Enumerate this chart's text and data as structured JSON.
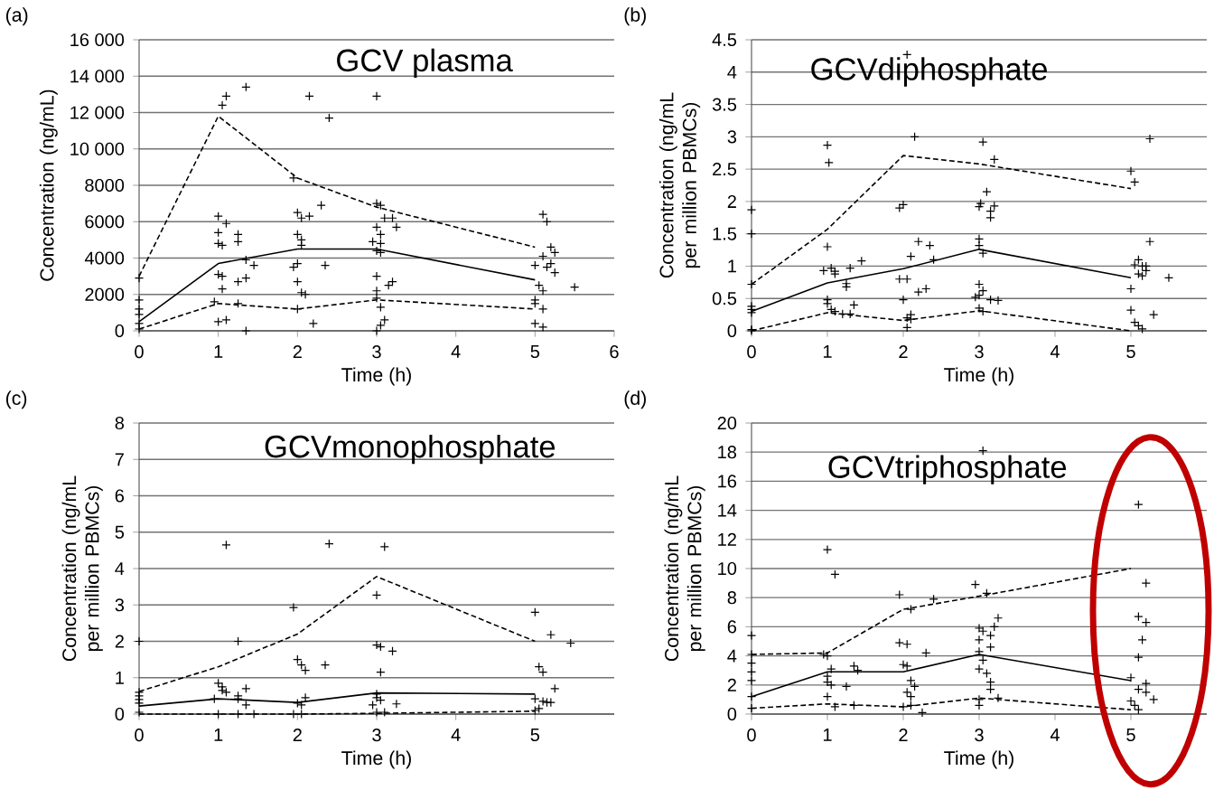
{
  "chart_data": [
    {
      "type": "line",
      "title": "GCV plasma",
      "annotations": [
        "(a)"
      ],
      "xlabel": "Time (h)",
      "ylabel": "Concentration (ng/mL)",
      "xlim": [
        0,
        6
      ],
      "xticks": [
        0,
        1,
        2,
        3,
        4,
        5,
        6
      ],
      "ylim": [
        0,
        16000
      ],
      "yticks": [
        0,
        2000,
        4000,
        6000,
        8000,
        {
          "value": 10000,
          "label": "10 000"
        },
        {
          "value": 12000,
          "label": "12 000"
        },
        {
          "value": 14000,
          "label": "14 000"
        },
        {
          "value": 16000,
          "label": "16 000"
        }
      ],
      "grid": "y",
      "series": [
        {
          "type": "scatter",
          "marker": "cross",
          "color": "#000000",
          "x": [
            0,
            0,
            0,
            0,
            0,
            0,
            1.05,
            1.1,
            1.35,
            1,
            1,
            1.1,
            1,
            1.05,
            1.25,
            1.25,
            1.35,
            1.45,
            1,
            1.05,
            1.25,
            1.35,
            0.95,
            1.25,
            1,
            1.1,
            1.35,
            1.05,
            1.95,
            2.15,
            2.4,
            2,
            2.05,
            2.15,
            2.3,
            2,
            2.05,
            2.05,
            1.95,
            2,
            2.35,
            2,
            2.05,
            2.1,
            2.2,
            2,
            3,
            3,
            3.05,
            3.1,
            3.2,
            3.25,
            3,
            3.05,
            2.95,
            3.05,
            3,
            3.05,
            3,
            3.2,
            3.15,
            3,
            3,
            3.05,
            3.1,
            3.05,
            3,
            5.1,
            5.15,
            5.2,
            5.25,
            5.1,
            5,
            5.2,
            5.15,
            5.25,
            5.05,
            5.1,
            5.5,
            5,
            5,
            5.1,
            5,
            5.1
          ],
          "values": [
            2900,
            1700,
            1200,
            900,
            400,
            100,
            12400,
            12900,
            13400,
            6300,
            5400,
            5900,
            4800,
            4700,
            5300,
            4900,
            3900,
            3600,
            3100,
            3000,
            2700,
            2900,
            1600,
            1500,
            500,
            600,
            0,
            2300,
            8400,
            12900,
            11700,
            6500,
            6200,
            6300,
            6900,
            5300,
            5000,
            4700,
            3500,
            3700,
            3600,
            2700,
            2100,
            2000,
            400,
            1200,
            12900,
            7000,
            6900,
            6200,
            6200,
            5700,
            5700,
            5300,
            4900,
            4800,
            4400,
            4300,
            3000,
            2700,
            2500,
            2200,
            1800,
            1300,
            600,
            300,
            0,
            6400,
            6000,
            4600,
            4300,
            4100,
            3600,
            3700,
            3500,
            3200,
            2500,
            2200,
            2400,
            1700,
            1500,
            1200,
            400,
            200
          ]
        },
        {
          "type": "line",
          "marker": "none",
          "line_style": "dashed",
          "color": "#000000",
          "x": [
            0,
            1,
            2,
            3,
            5
          ],
          "values": [
            3000,
            11800,
            8400,
            6800,
            4600
          ]
        },
        {
          "type": "line",
          "marker": "none",
          "line_style": "solid",
          "color": "#000000",
          "x": [
            0,
            1,
            2,
            3,
            5
          ],
          "values": [
            500,
            3700,
            4500,
            4500,
            2800
          ]
        },
        {
          "type": "line",
          "marker": "none",
          "line_style": "dashed",
          "color": "#000000",
          "x": [
            0,
            1,
            2,
            3,
            5
          ],
          "values": [
            100,
            1500,
            1200,
            1700,
            1200
          ]
        }
      ]
    },
    {
      "type": "line",
      "title": "GCVdiphosphate",
      "annotations": [
        "(b)"
      ],
      "xlabel": "Time (h)",
      "ylabel": "Concentration (ng/mL per million PBMCs)",
      "xlim": [
        0,
        6
      ],
      "xticks": [
        0,
        1,
        2,
        3,
        4,
        5
      ],
      "ylim": [
        0,
        4.5
      ],
      "yticks": [
        0,
        0.5,
        1,
        1.5,
        2,
        2.5,
        3,
        3.5,
        4,
        4.5
      ],
      "grid": "y",
      "series": [
        {
          "type": "scatter",
          "marker": "cross",
          "color": "#000000",
          "x": [
            0,
            0,
            0,
            0,
            0,
            0,
            0,
            0,
            1,
            1.02,
            1,
            0.95,
            1.05,
            1.1,
            1.1,
            1.3,
            1.45,
            1.25,
            1.25,
            1,
            1,
            1.05,
            1.1,
            1.2,
            1.3,
            1.35,
            2.05,
            2.15,
            1.95,
            2,
            2.1,
            2.2,
            2.35,
            2.4,
            1.95,
            2.05,
            2.2,
            2.3,
            2,
            2.1,
            2.05,
            2.1,
            2.05,
            3.05,
            3.2,
            3,
            3.02,
            3.1,
            3.15,
            3.15,
            3.2,
            3,
            3,
            3.05,
            3,
            3.05,
            2.95,
            3,
            3.15,
            3.25,
            3,
            3.05,
            5.25,
            5,
            5.05,
            5.25,
            5.1,
            5.05,
            5.15,
            5.2,
            5.2,
            5.1,
            5.15,
            5.5,
            5,
            5,
            5.3,
            5.05,
            5.1,
            5.15
          ],
          "values": [
            1.87,
            1.5,
            0.72,
            0.38,
            0.33,
            0.28,
            0.02,
            0,
            2.87,
            2.6,
            1.3,
            0.93,
            0.97,
            0.92,
            0.88,
            0.97,
            1.08,
            0.73,
            0.68,
            0.48,
            0.42,
            0.33,
            0.3,
            0.26,
            0.26,
            0.4,
            4.27,
            3.0,
            1.9,
            1.95,
            1.15,
            1.38,
            1.32,
            1.1,
            0.8,
            0.8,
            0.6,
            0.65,
            0.48,
            0.25,
            0.2,
            0.18,
            0.05,
            2.92,
            2.65,
            1.92,
            1.97,
            2.15,
            1.85,
            1.75,
            1.93,
            1.42,
            1.32,
            1.2,
            0.72,
            0.62,
            0.52,
            0.55,
            0.48,
            0.47,
            0.35,
            0.3,
            2.97,
            2.47,
            2.3,
            1.38,
            1.1,
            1.02,
            1.0,
            1.0,
            0.93,
            0.88,
            0.85,
            0.82,
            0.65,
            0.32,
            0.25,
            0.13,
            0.08,
            0.03
          ]
        },
        {
          "type": "line",
          "marker": "none",
          "line_style": "dashed",
          "color": "#000000",
          "x": [
            0,
            1,
            2,
            3,
            5
          ],
          "values": [
            0.72,
            1.57,
            2.71,
            2.58,
            2.2
          ]
        },
        {
          "type": "line",
          "marker": "none",
          "line_style": "solid",
          "color": "#000000",
          "x": [
            0,
            1,
            2,
            3,
            5
          ],
          "values": [
            0.3,
            0.74,
            0.96,
            1.26,
            0.82
          ]
        },
        {
          "type": "line",
          "marker": "none",
          "line_style": "dashed",
          "color": "#000000",
          "x": [
            0,
            1,
            2,
            3,
            5
          ],
          "values": [
            0,
            0.28,
            0.16,
            0.31,
            0
          ]
        }
      ]
    },
    {
      "type": "line",
      "title": "GCVmonophosphate",
      "annotations": [
        "(c)"
      ],
      "xlabel": "Time (h)",
      "ylabel": "Concentration (ng/mL per million PBMCs)",
      "xlim": [
        0,
        6
      ],
      "xticks": [
        0,
        1,
        2,
        3,
        4,
        5
      ],
      "ylim": [
        0,
        8
      ],
      "yticks": [
        0,
        1,
        2,
        3,
        4,
        5,
        6,
        7,
        8
      ],
      "grid": "y",
      "series": [
        {
          "type": "scatter",
          "marker": "cross",
          "color": "#000000",
          "x": [
            0,
            0,
            0,
            0,
            0,
            0,
            1.1,
            1.25,
            1,
            1.05,
            1.05,
            1.1,
            0.95,
            1.25,
            1.25,
            1.35,
            1.35,
            1,
            1.25,
            1.45,
            2.4,
            1.95,
            2,
            2.05,
            2.1,
            2.35,
            2,
            2.05,
            2.1,
            1.95,
            2.05,
            3.1,
            3,
            3,
            3.05,
            3.2,
            3.05,
            3,
            2.95,
            3,
            3.05,
            3.25,
            3,
            3.1,
            5,
            5.2,
            5.45,
            5.05,
            5.1,
            5.25,
            5,
            5.1,
            5.15,
            5.2,
            5.05,
            5
          ],
          "values": [
            2.0,
            0.6,
            0.5,
            0.4,
            0.3,
            0.05,
            4.65,
            2.0,
            0.85,
            0.75,
            0.65,
            0.6,
            0.42,
            0.5,
            0.42,
            0.7,
            0.25,
            0,
            0,
            0,
            4.68,
            2.93,
            1.5,
            1.35,
            1.2,
            1.35,
            0.3,
            0.25,
            0.45,
            0,
            0,
            4.6,
            3.27,
            1.9,
            1.85,
            1.73,
            1.15,
            0.55,
            0.25,
            0.45,
            0.38,
            0.28,
            0.05,
            0.05,
            2.8,
            2.18,
            1.95,
            1.3,
            1.15,
            0.7,
            0.42,
            0.35,
            0.32,
            0.32,
            0.15,
            0.1
          ]
        },
        {
          "type": "line",
          "marker": "none",
          "line_style": "dashed",
          "color": "#000000",
          "x": [
            0,
            1,
            2,
            3,
            5
          ],
          "values": [
            0.62,
            1.3,
            2.2,
            3.78,
            2.0
          ]
        },
        {
          "type": "line",
          "marker": "none",
          "line_style": "solid",
          "color": "#000000",
          "x": [
            0,
            1,
            2,
            3,
            5
          ],
          "values": [
            0.22,
            0.42,
            0.32,
            0.58,
            0.55
          ]
        },
        {
          "type": "line",
          "marker": "none",
          "line_style": "dashed",
          "color": "#000000",
          "x": [
            0,
            1,
            2,
            3,
            5
          ],
          "values": [
            0,
            0,
            0,
            0.02,
            0.08
          ]
        }
      ]
    },
    {
      "type": "line",
      "title": "GCVtriphosphate",
      "annotations": [
        "(d)"
      ],
      "xlabel": "Time (h)",
      "ylabel": "Concentration (ng/mL per million PBMCs)",
      "xlim": [
        0,
        6
      ],
      "xticks": [
        0,
        1,
        2,
        3,
        4,
        5
      ],
      "ylim": [
        0,
        20
      ],
      "yticks": [
        0,
        2,
        4,
        6,
        8,
        10,
        12,
        14,
        16,
        18,
        20
      ],
      "grid": "y",
      "series": [
        {
          "type": "scatter",
          "marker": "cross",
          "color": "#000000",
          "x": [
            0,
            0,
            0,
            0,
            0,
            0,
            0,
            1,
            1.1,
            0.95,
            1,
            1.05,
            1,
            1,
            1.05,
            1.25,
            1.35,
            1.4,
            1,
            1.1,
            1.35,
            1.95,
            2.1,
            2.4,
            1.95,
            2.05,
            2.3,
            2,
            2.05,
            2.1,
            2.05,
            2.15,
            2.1,
            2,
            2.1,
            2.25,
            3.05,
            2.95,
            3.1,
            3,
            3.05,
            3.15,
            3.2,
            3.25,
            3,
            3.15,
            3,
            3.05,
            3,
            3.1,
            3.15,
            3.15,
            3,
            3,
            3.25,
            5.1,
            5.2,
            5.1,
            5.2,
            5.15,
            5.1,
            5,
            5.2,
            5.1,
            5.2,
            5.3,
            5,
            5.05,
            5.1
          ],
          "values": [
            5.4,
            4.1,
            3.5,
            2.9,
            2.3,
            1.2,
            0.4,
            11.3,
            9.6,
            4.1,
            4.0,
            3.1,
            2.6,
            2.2,
            2.0,
            1.9,
            3.3,
            3.0,
            1.2,
            0.5,
            0.6,
            8.2,
            7.2,
            7.9,
            4.9,
            4.8,
            4.2,
            3.4,
            3.3,
            2.3,
            1.5,
            1.9,
            1.2,
            0.5,
            0.6,
            0.1,
            18.1,
            8.9,
            8.3,
            5.9,
            5.7,
            5.4,
            6.0,
            6.6,
            5.1,
            4.6,
            4.3,
            3.7,
            3.1,
            2.8,
            2.2,
            1.7,
            1.0,
            0.6,
            1.1,
            14.4,
            9.0,
            6.7,
            6.3,
            5.1,
            3.9,
            2.5,
            2.1,
            1.7,
            1.5,
            1.0,
            0.9,
            0.6,
            0.3
          ]
        },
        {
          "type": "line",
          "marker": "none",
          "line_style": "dashed",
          "color": "#000000",
          "x": [
            0,
            1,
            2,
            3,
            5
          ],
          "values": [
            4.1,
            4.2,
            7.2,
            8.1,
            10.0
          ]
        },
        {
          "type": "line",
          "marker": "none",
          "line_style": "solid",
          "color": "#000000",
          "x": [
            0,
            1,
            2,
            3,
            5
          ],
          "values": [
            1.2,
            2.9,
            2.9,
            4.1,
            2.3
          ]
        },
        {
          "type": "line",
          "marker": "none",
          "line_style": "dashed",
          "color": "#000000",
          "x": [
            0,
            1,
            2,
            3,
            5
          ],
          "values": [
            0.4,
            0.7,
            0.5,
            1.1,
            0.3
          ]
        }
      ]
    }
  ]
}
